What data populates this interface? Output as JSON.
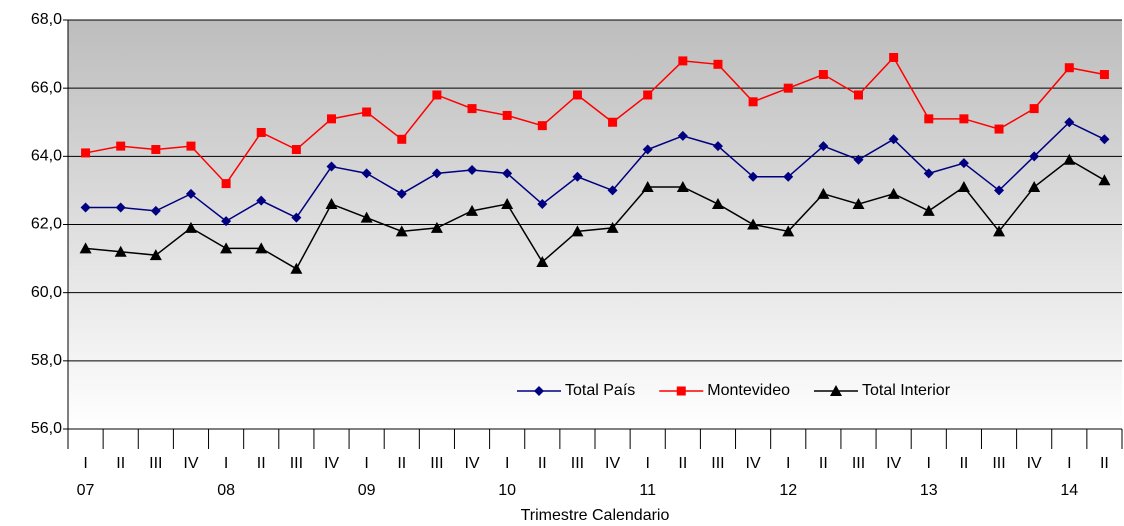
{
  "chart_data": {
    "type": "line",
    "x_title": "Trimestre Calendario",
    "categories": [
      "I",
      "II",
      "III",
      "IV",
      "I",
      "II",
      "III",
      "IV",
      "I",
      "II",
      "III",
      "IV",
      "I",
      "II",
      "III",
      "IV",
      "I",
      "II",
      "III",
      "IV",
      "I",
      "II",
      "III",
      "IV",
      "I",
      "II",
      "III",
      "IV",
      "I",
      "II"
    ],
    "years": [
      "07",
      null,
      null,
      null,
      "08",
      null,
      null,
      null,
      "09",
      null,
      null,
      null,
      "10",
      null,
      null,
      null,
      "11",
      null,
      null,
      null,
      "12",
      null,
      null,
      null,
      "13",
      null,
      null,
      null,
      "14",
      null
    ],
    "ylim": [
      56,
      68
    ],
    "yticks": [
      {
        "value": 56,
        "label": "56,0"
      },
      {
        "value": 58,
        "label": "58,0"
      },
      {
        "value": 60,
        "label": "60,0"
      },
      {
        "value": 62,
        "label": "62,0"
      },
      {
        "value": 64,
        "label": "64,0"
      },
      {
        "value": 66,
        "label": "66,0"
      },
      {
        "value": 68,
        "label": "68,0"
      }
    ],
    "grid": true,
    "legend": "bottom-right",
    "series": [
      {
        "name": "Total País",
        "color": "#000080",
        "marker": "diamond",
        "values": [
          62.5,
          62.5,
          62.4,
          62.9,
          62.1,
          62.7,
          62.2,
          63.7,
          63.5,
          62.9,
          63.5,
          63.6,
          63.5,
          62.6,
          63.4,
          63.0,
          64.2,
          64.6,
          64.3,
          63.4,
          63.4,
          64.3,
          63.9,
          64.5,
          63.5,
          63.8,
          63.0,
          64.0,
          65.0,
          64.5
        ]
      },
      {
        "name": "Montevideo",
        "color": "#ff0000",
        "marker": "square",
        "values": [
          64.1,
          64.3,
          64.2,
          64.3,
          63.2,
          64.7,
          64.2,
          65.1,
          65.3,
          64.5,
          65.8,
          65.4,
          65.2,
          64.9,
          65.8,
          65.0,
          65.8,
          66.8,
          66.7,
          65.6,
          66.0,
          66.4,
          65.8,
          66.9,
          65.1,
          65.1,
          64.8,
          65.4,
          66.6,
          66.4
        ]
      },
      {
        "name": "Total Interior",
        "color": "#000000",
        "marker": "triangle",
        "values": [
          61.3,
          61.2,
          61.1,
          61.9,
          61.3,
          61.3,
          60.7,
          62.6,
          62.2,
          61.8,
          61.9,
          62.4,
          62.6,
          60.9,
          61.8,
          61.9,
          63.1,
          63.1,
          62.6,
          62.0,
          61.8,
          62.9,
          62.6,
          62.9,
          62.4,
          63.1,
          61.8,
          63.1,
          63.9,
          63.3
        ]
      }
    ]
  }
}
